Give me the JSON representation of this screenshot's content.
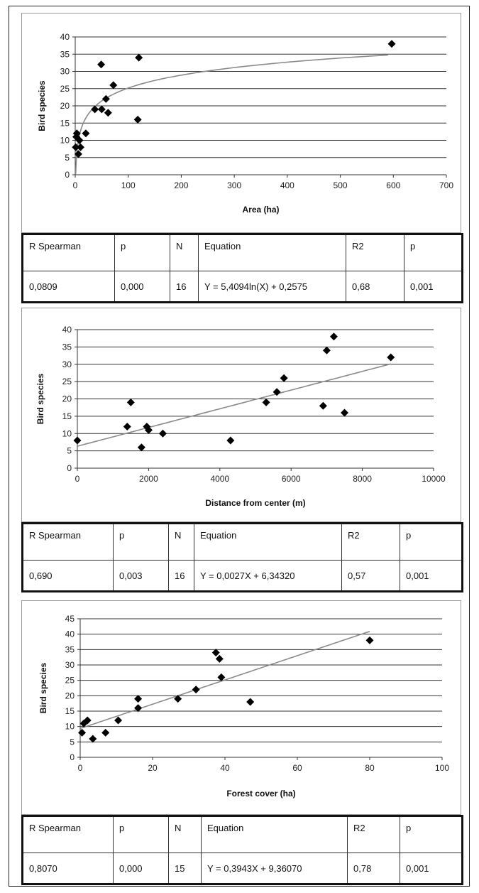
{
  "chart_data": [
    {
      "type": "scatter",
      "xlabel": "Area (ha)",
      "ylabel": "Bird species",
      "xlim": [
        0,
        700
      ],
      "ylim": [
        0,
        40
      ],
      "xticks": [
        0,
        100,
        200,
        300,
        400,
        500,
        600,
        700
      ],
      "yticks": [
        0,
        5,
        10,
        15,
        20,
        25,
        30,
        35,
        40
      ],
      "grid": "horizontal",
      "trendline": {
        "kind": "log",
        "a": 5.4094,
        "b": 0.2575,
        "x_range": [
          1,
          590
        ]
      },
      "series": [
        {
          "points": [
            [
              1,
              8
            ],
            [
              2,
              11
            ],
            [
              3,
              12
            ],
            [
              6,
              6
            ],
            [
              8,
              10
            ],
            [
              10,
              8
            ],
            [
              20,
              12
            ],
            [
              37,
              19
            ],
            [
              50,
              19
            ],
            [
              49,
              32
            ],
            [
              58,
              22
            ],
            [
              62,
              18
            ],
            [
              72,
              26
            ],
            [
              118,
              16
            ],
            [
              120,
              34
            ],
            [
              597,
              38
            ]
          ]
        }
      ],
      "stats": {
        "headers": [
          "R Spearman",
          "p",
          "N",
          "Equation",
          "R2",
          "p"
        ],
        "values": [
          "0,0809",
          "0,000",
          "16",
          "Y = 5,4094ln(X) + 0,2575",
          "0,68",
          "0,001"
        ]
      }
    },
    {
      "type": "scatter",
      "xlabel": "Distance from center (m)",
      "ylabel": "Bird species",
      "xlim": [
        0,
        10000
      ],
      "ylim": [
        0,
        40
      ],
      "xticks": [
        0,
        2000,
        4000,
        6000,
        8000,
        10000
      ],
      "yticks": [
        0,
        5,
        10,
        15,
        20,
        25,
        30,
        35,
        40
      ],
      "grid": "horizontal",
      "trendline": {
        "kind": "linear",
        "a": 0.0027,
        "b": 6.3432,
        "x_range": [
          0,
          8800
        ]
      },
      "series": [
        {
          "points": [
            [
              0,
              8
            ],
            [
              1400,
              12
            ],
            [
              1500,
              19
            ],
            [
              1800,
              6
            ],
            [
              1950,
              12
            ],
            [
              2000,
              11
            ],
            [
              2400,
              10
            ],
            [
              4300,
              8
            ],
            [
              5300,
              19
            ],
            [
              5600,
              22
            ],
            [
              5800,
              26
            ],
            [
              6900,
              18
            ],
            [
              7000,
              34
            ],
            [
              7200,
              38
            ],
            [
              7500,
              16
            ],
            [
              8800,
              32
            ]
          ]
        }
      ],
      "stats": {
        "headers": [
          "R Spearman",
          "p",
          "N",
          "Equation",
          "R2",
          "p"
        ],
        "values": [
          "0,690",
          "0,003",
          "16",
          "Y = 0,0027X + 6,34320",
          "0,57",
          "0,001"
        ]
      }
    },
    {
      "type": "scatter",
      "xlabel": "Forest cover (ha)",
      "ylabel": "Bird species",
      "xlim": [
        0,
        100
      ],
      "ylim": [
        0,
        45
      ],
      "xticks": [
        0,
        20,
        40,
        60,
        80,
        100
      ],
      "yticks": [
        0,
        5,
        10,
        15,
        20,
        25,
        30,
        35,
        40,
        45
      ],
      "grid": "horizontal",
      "trendline": {
        "kind": "linear",
        "a": 0.3943,
        "b": 9.3607,
        "x_range": [
          0,
          80
        ]
      },
      "series": [
        {
          "points": [
            [
              0.5,
              8
            ],
            [
              1,
              11
            ],
            [
              2,
              12
            ],
            [
              3.5,
              6
            ],
            [
              7,
              8
            ],
            [
              10.5,
              12
            ],
            [
              16,
              16
            ],
            [
              16,
              19
            ],
            [
              27,
              19
            ],
            [
              32,
              22
            ],
            [
              37.5,
              34
            ],
            [
              38.5,
              32
            ],
            [
              39,
              26
            ],
            [
              47,
              18
            ],
            [
              80,
              38
            ]
          ]
        }
      ],
      "stats": {
        "headers": [
          "R Spearman",
          "p",
          "N",
          "Equation",
          "R2",
          "p"
        ],
        "values": [
          "0,8070",
          "0,000",
          "15",
          "Y = 0,3943X + 9,36070",
          "0,78",
          "0,001"
        ]
      }
    }
  ]
}
